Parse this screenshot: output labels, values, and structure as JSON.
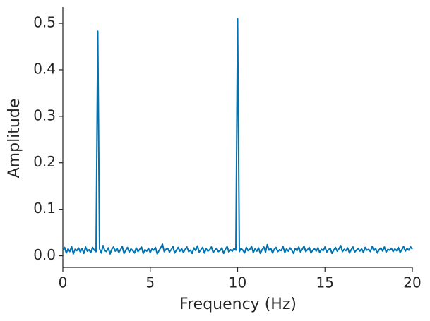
{
  "chart_data": {
    "type": "line",
    "x_label": "Frequency (Hz)",
    "y_label": "Amplitude",
    "xlim": [
      0,
      20
    ],
    "ylim": [
      -0.025,
      0.535
    ],
    "xticks": [
      0,
      5,
      10,
      15,
      20
    ],
    "yticks": [
      {
        "value": 0,
        "label": "0.0"
      },
      0.1,
      0.2,
      0.3,
      0.4,
      0.5
    ],
    "grid": false,
    "x": [
      0,
      0.1,
      0.2,
      0.3,
      0.4,
      0.5,
      0.6,
      0.7,
      0.8,
      0.9,
      1,
      1.1,
      1.2,
      1.3,
      1.4,
      1.5,
      1.6,
      1.7,
      1.8,
      1.9,
      2,
      2.1,
      2.2,
      2.3,
      2.4,
      2.5,
      2.6,
      2.7,
      2.8,
      2.9,
      3,
      3.1,
      3.2,
      3.3,
      3.4,
      3.5,
      3.6,
      3.7,
      3.8,
      3.9,
      4,
      4.1,
      4.2,
      4.3,
      4.4,
      4.5,
      4.6,
      4.7,
      4.8,
      4.9,
      5,
      5.1,
      5.2,
      5.3,
      5.4,
      5.5,
      5.6,
      5.7,
      5.8,
      5.9,
      6,
      6.1,
      6.2,
      6.3,
      6.4,
      6.5,
      6.6,
      6.7,
      6.8,
      6.9,
      7,
      7.1,
      7.2,
      7.3,
      7.4,
      7.5,
      7.6,
      7.7,
      7.8,
      7.9,
      8,
      8.1,
      8.2,
      8.3,
      8.4,
      8.5,
      8.6,
      8.7,
      8.8,
      8.9,
      9,
      9.1,
      9.2,
      9.3,
      9.4,
      9.5,
      9.6,
      9.7,
      9.8,
      9.9,
      10,
      10.1,
      10.2,
      10.3,
      10.4,
      10.5,
      10.6,
      10.7,
      10.8,
      10.9,
      11,
      11.1,
      11.2,
      11.3,
      11.4,
      11.5,
      11.6,
      11.7,
      11.8,
      11.9,
      12,
      12.1,
      12.2,
      12.3,
      12.4,
      12.5,
      12.6,
      12.7,
      12.8,
      12.9,
      13,
      13.1,
      13.2,
      13.3,
      13.4,
      13.5,
      13.6,
      13.7,
      13.8,
      13.9,
      14,
      14.1,
      14.2,
      14.3,
      14.4,
      14.5,
      14.6,
      14.7,
      14.8,
      14.9,
      15,
      15.1,
      15.2,
      15.3,
      15.4,
      15.5,
      15.6,
      15.7,
      15.8,
      15.9,
      16,
      16.1,
      16.2,
      16.3,
      16.4,
      16.5,
      16.6,
      16.7,
      16.8,
      16.9,
      17,
      17.1,
      17.2,
      17.3,
      17.4,
      17.5,
      17.6,
      17.7,
      17.8,
      17.9,
      18,
      18.1,
      18.2,
      18.3,
      18.4,
      18.5,
      18.6,
      18.7,
      18.8,
      18.9,
      19,
      19.1,
      19.2,
      19.3,
      19.4,
      19.5,
      19.6,
      19.7,
      19.8,
      19.9,
      20
    ],
    "series": [
      {
        "color": "#0173b2",
        "values": [
          0.012,
          0.018,
          0.006,
          0.015,
          0.009,
          0.02,
          0.004,
          0.014,
          0.011,
          0.017,
          0.008,
          0.016,
          0.005,
          0.019,
          0.01,
          0.013,
          0.007,
          0.018,
          0.012,
          0.009,
          0.483,
          0.015,
          0.006,
          0.022,
          0.011,
          0.009,
          0.017,
          0.004,
          0.014,
          0.019,
          0.01,
          0.016,
          0.007,
          0.013,
          0.02,
          0.005,
          0.012,
          0.018,
          0.008,
          0.015,
          0.011,
          0.006,
          0.017,
          0.009,
          0.014,
          0.019,
          0.005,
          0.013,
          0.01,
          0.016,
          0.007,
          0.015,
          0.012,
          0.018,
          0.004,
          0.011,
          0.017,
          0.025,
          0.009,
          0.014,
          0.016,
          0.008,
          0.013,
          0.02,
          0.006,
          0.012,
          0.018,
          0.01,
          0.015,
          0.007,
          0.014,
          0.019,
          0.009,
          0.012,
          0.005,
          0.017,
          0.011,
          0.021,
          0.008,
          0.013,
          0.018,
          0.006,
          0.015,
          0.01,
          0.013,
          0.019,
          0.007,
          0.012,
          0.016,
          0.009,
          0.011,
          0.017,
          0.005,
          0.014,
          0.02,
          0.008,
          0.013,
          0.01,
          0.016,
          0.012,
          0.51,
          0.009,
          0.016,
          0.012,
          0.006,
          0.018,
          0.011,
          0.014,
          0.02,
          0.007,
          0.015,
          0.01,
          0.017,
          0.005,
          0.013,
          0.019,
          0.008,
          0.024,
          0.012,
          0.016,
          0.006,
          0.014,
          0.018,
          0.009,
          0.013,
          0.011,
          0.02,
          0.007,
          0.015,
          0.01,
          0.017,
          0.012,
          0.005,
          0.016,
          0.011,
          0.019,
          0.008,
          0.014,
          0.021,
          0.009,
          0.013,
          0.018,
          0.006,
          0.012,
          0.015,
          0.01,
          0.017,
          0.007,
          0.014,
          0.011,
          0.019,
          0.008,
          0.013,
          0.016,
          0.005,
          0.012,
          0.018,
          0.01,
          0.015,
          0.022,
          0.009,
          0.014,
          0.011,
          0.017,
          0.006,
          0.013,
          0.019,
          0.008,
          0.012,
          0.016,
          0.01,
          0.015,
          0.007,
          0.018,
          0.012,
          0.014,
          0.009,
          0.02,
          0.011,
          0.016,
          0.006,
          0.013,
          0.017,
          0.01,
          0.019,
          0.008,
          0.014,
          0.012,
          0.016,
          0.009,
          0.015,
          0.011,
          0.018,
          0.007,
          0.013,
          0.02,
          0.01,
          0.016,
          0.012,
          0.019,
          0.014
        ]
      }
    ]
  }
}
